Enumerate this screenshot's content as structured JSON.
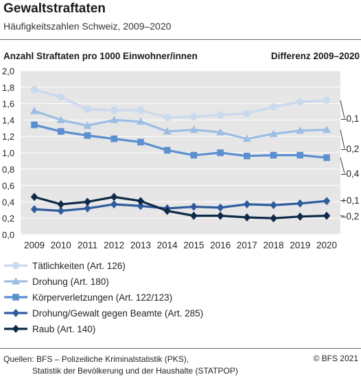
{
  "header": {
    "title": "Gewaltstraftaten",
    "subtitle": "Häufigkeitszahlen Schweiz, 2009–2020"
  },
  "footer": {
    "source_line1": "Quellen: BFS – Polizeiliche Kriminalstatistik (PKS),",
    "source_line2": "Statistik der Bevölkerung und der Haushalte (STATPOP)",
    "copyright": "© BFS 2021"
  },
  "chart_data": {
    "type": "line",
    "ylabel": "Anzahl Straftaten pro 1000 Einwohner/innen",
    "diff_label": "Differenz 2009–2020",
    "x": [
      "2009",
      "2010",
      "2011",
      "2012",
      "2013",
      "2014",
      "2015",
      "2016",
      "2017",
      "2018",
      "2019",
      "2020"
    ],
    "ylim": [
      0,
      2.0
    ],
    "yticks": [
      "0,0",
      "0,2",
      "0,4",
      "0,6",
      "0,8",
      "1,0",
      "1,2",
      "1,4",
      "1,6",
      "1,8",
      "2,0"
    ],
    "grid": true,
    "legend_position": "bottom",
    "series": [
      {
        "name": "Tätlichkeiten (Art. 126)",
        "color": "#c9d9ee",
        "marker": "circle",
        "values": [
          1.77,
          1.68,
          1.53,
          1.52,
          1.52,
          1.43,
          1.44,
          1.46,
          1.48,
          1.56,
          1.62,
          1.64
        ],
        "diff": "–0,1"
      },
      {
        "name": "Drohung (Art. 180)",
        "color": "#9cbde4",
        "marker": "triangle",
        "values": [
          1.51,
          1.4,
          1.33,
          1.4,
          1.38,
          1.26,
          1.28,
          1.25,
          1.17,
          1.23,
          1.27,
          1.28
        ],
        "diff": "–0,2"
      },
      {
        "name": "Körperverletzungen (Art. 122/123)",
        "color": "#5b8fcf",
        "marker": "square",
        "values": [
          1.34,
          1.26,
          1.21,
          1.17,
          1.13,
          1.03,
          0.97,
          1.0,
          0.96,
          0.97,
          0.97,
          0.94
        ],
        "diff": "–0,4"
      },
      {
        "name": "Drohung/Gewalt gegen Beamte (Art. 285)",
        "color": "#2e5c9e",
        "marker": "diamond",
        "values": [
          0.31,
          0.29,
          0.32,
          0.37,
          0.35,
          0.32,
          0.34,
          0.33,
          0.37,
          0.36,
          0.38,
          0.41
        ],
        "diff": "+0,1"
      },
      {
        "name": "Raub (Art. 140)",
        "color": "#0e2a47",
        "marker": "diamond",
        "values": [
          0.46,
          0.37,
          0.4,
          0.46,
          0.41,
          0.29,
          0.23,
          0.23,
          0.21,
          0.2,
          0.22,
          0.23
        ],
        "diff": "–0,2"
      }
    ]
  }
}
